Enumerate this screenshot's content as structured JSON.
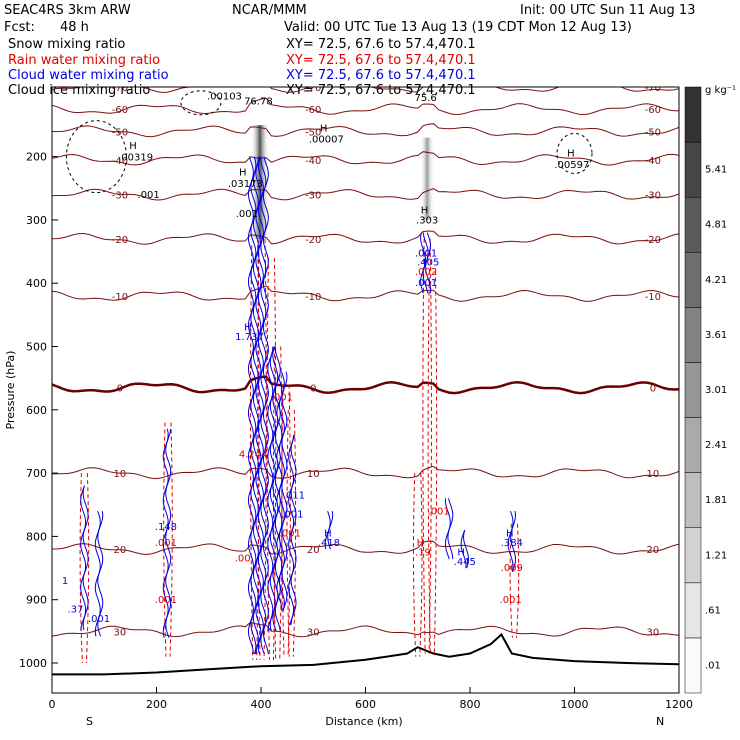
{
  "header": {
    "model": "SEAC4RS  3km ARW",
    "org": "NCAR/MMM",
    "init": "Init: 00 UTC Sun 11 Aug 13",
    "fcst_label": "Fcst:",
    "fcst_value": "48 h",
    "valid": "Valid: 00 UTC Tue 13 Aug 13 (19 CDT Mon 12 Aug 13)"
  },
  "fields": [
    {
      "name": "Snow mixing ratio",
      "xy": "XY=  72.5, 67.6  to  57.4,470.1",
      "color": "#000000"
    },
    {
      "name": "Rain water mixing ratio",
      "xy": "XY=  72.5, 67.6  to  57.4,470.1",
      "color": "#e00000"
    },
    {
      "name": "Cloud water mixing ratio",
      "xy": "XY=  72.5, 67.6  to  57.4,470.1",
      "color": "#0000e0"
    },
    {
      "name": "Cloud ice mixing ratio",
      "xy": "XY=  72.5, 67.6  to  57.4,470.1",
      "color": "#000000"
    }
  ],
  "chart_data": {
    "type": "contour cross-section",
    "xlabel": "Distance (km)",
    "ylabel": "Pressure (hPa)",
    "xlim": [
      0,
      1200
    ],
    "ylim": [
      1000,
      100
    ],
    "x_ticks": [
      0,
      200,
      400,
      600,
      800,
      1000,
      1200
    ],
    "y_ticks": [
      200,
      300,
      400,
      500,
      600,
      700,
      800,
      900,
      1000
    ],
    "x_end_labels": {
      "left": "S",
      "right": "N"
    },
    "colorbar": {
      "unit": "g kg⁻¹",
      "ticks": [
        ".01",
        ".61",
        "1.21",
        "1.81",
        "2.41",
        "3.01",
        "3.61",
        "4.21",
        "4.81",
        "5.41"
      ]
    },
    "temperature_contours": [
      {
        "label": "-70",
        "points": [
          [
            160,
            -81
          ],
          [
            300,
            -79
          ],
          [
            420,
            -78
          ],
          [
            600,
            -77
          ],
          [
            750,
            -75
          ],
          [
            900,
            -73
          ],
          [
            1050,
            -71
          ],
          [
            1200,
            -70
          ]
        ]
      },
      {
        "label": "-60",
        "points": [
          [
            0,
            -64
          ],
          [
            150,
            -66
          ],
          [
            300,
            -65
          ],
          [
            420,
            -64
          ],
          [
            600,
            -65
          ],
          [
            800,
            -64
          ],
          [
            1000,
            -62
          ],
          [
            1200,
            -61
          ]
        ]
      },
      {
        "label": "-50",
        "points": [
          [
            0,
            -54
          ],
          [
            200,
            -55
          ],
          [
            400,
            -54
          ],
          [
            600,
            -53
          ],
          [
            800,
            -53
          ],
          [
            1000,
            -52
          ],
          [
            1200,
            -50
          ]
        ]
      },
      {
        "label": "-40",
        "points": [
          [
            0,
            -42
          ],
          [
            200,
            -44
          ],
          [
            400,
            -43
          ],
          [
            600,
            -42
          ],
          [
            800,
            -41
          ],
          [
            1000,
            -40
          ],
          [
            1200,
            -39
          ]
        ]
      },
      {
        "label": "-30",
        "points": [
          [
            0,
            -31
          ],
          [
            200,
            -32
          ],
          [
            400,
            -30
          ],
          [
            600,
            -30
          ],
          [
            800,
            -29
          ],
          [
            1000,
            -29
          ],
          [
            1200,
            -28
          ]
        ]
      },
      {
        "label": "-20",
        "points": [
          [
            0,
            -19
          ],
          [
            200,
            -20
          ],
          [
            400,
            -21
          ],
          [
            600,
            -20
          ],
          [
            800,
            -19
          ],
          [
            1000,
            -18
          ],
          [
            1200,
            -17
          ]
        ]
      },
      {
        "label": "-10",
        "points": [
          [
            0,
            -7
          ],
          [
            200,
            -7
          ],
          [
            400,
            -8
          ],
          [
            600,
            -8
          ],
          [
            800,
            -6
          ],
          [
            1000,
            -5
          ],
          [
            1200,
            -4
          ]
        ]
      },
      {
        "label": "0",
        "points": [
          [
            0,
            0
          ],
          [
            200,
            0
          ],
          [
            400,
            0
          ],
          [
            600,
            0
          ],
          [
            800,
            0
          ],
          [
            1000,
            0
          ],
          [
            1200,
            0
          ]
        ]
      },
      {
        "label": "10",
        "points": [
          [
            0,
            13
          ],
          [
            200,
            12
          ],
          [
            400,
            11
          ],
          [
            600,
            11
          ],
          [
            800,
            11
          ],
          [
            1000,
            12
          ],
          [
            1200,
            13
          ]
        ]
      },
      {
        "label": "20",
        "points": [
          [
            0,
            20
          ],
          [
            200,
            19
          ],
          [
            400,
            19
          ],
          [
            600,
            19
          ],
          [
            800,
            20
          ],
          [
            1000,
            20
          ],
          [
            1200,
            21
          ]
        ]
      },
      {
        "label": "30",
        "points": [
          [
            200,
            29
          ],
          [
            400,
            29
          ],
          [
            600,
            30
          ],
          [
            800,
            30
          ],
          [
            1000,
            30
          ],
          [
            1200,
            31
          ]
        ]
      }
    ],
    "isotherm_pressures": {
      "-70": 90,
      "-60": 125,
      "-50": 160,
      "-40": 205,
      "-30": 260,
      "-20": 330,
      "-10": 420,
      "0": 565,
      "10": 700,
      "20": 820,
      "30": 950
    },
    "terrain": [
      [
        0,
        1018
      ],
      [
        100,
        1018
      ],
      [
        200,
        1015
      ],
      [
        300,
        1010
      ],
      [
        400,
        1005
      ],
      [
        500,
        1003
      ],
      [
        600,
        995
      ],
      [
        680,
        985
      ],
      [
        700,
        975
      ],
      [
        730,
        985
      ],
      [
        760,
        990
      ],
      [
        800,
        985
      ],
      [
        840,
        970
      ],
      [
        860,
        955
      ],
      [
        880,
        985
      ],
      [
        920,
        992
      ],
      [
        1000,
        997
      ],
      [
        1100,
        1000
      ],
      [
        1200,
        1002
      ]
    ],
    "snow_shading_columns": [
      {
        "x": 398,
        "p_top": 150,
        "p_bottom": 330,
        "max": 3.0
      },
      {
        "x": 718,
        "p_top": 170,
        "p_bottom": 300,
        "max": 1.2
      }
    ],
    "labels": [
      {
        "text": ".00103",
        "x": 330,
        "p": 110,
        "color": "black"
      },
      {
        "text": "76.78",
        "x": 395,
        "p": 118,
        "color": "black"
      },
      {
        "text": "75.6",
        "x": 715,
        "p": 112,
        "color": "black"
      },
      {
        "text": "H",
        "x": 520,
        "p": 160,
        "color": "black"
      },
      {
        "text": ".00007",
        "x": 525,
        "p": 178,
        "color": "black"
      },
      {
        "text": "H",
        "x": 155,
        "p": 188,
        "color": "black"
      },
      {
        "text": ".00319",
        "x": 160,
        "p": 206,
        "color": "black"
      },
      {
        "text": ".001",
        "x": 185,
        "p": 265,
        "color": "black"
      },
      {
        "text": "H",
        "x": 365,
        "p": 230,
        "color": "black"
      },
      {
        "text": ".03173",
        "x": 370,
        "p": 248,
        "color": "black"
      },
      {
        "text": ".001",
        "x": 373,
        "p": 295,
        "color": "black"
      },
      {
        "text": "H",
        "x": 993,
        "p": 200,
        "color": "black"
      },
      {
        "text": ".00597",
        "x": 995,
        "p": 218,
        "color": "black"
      },
      {
        "text": "H",
        "x": 713,
        "p": 290,
        "color": "black"
      },
      {
        "text": ".303",
        "x": 718,
        "p": 306,
        "color": "black"
      },
      {
        "text": ".001",
        "x": 716,
        "p": 358,
        "color": "blue"
      },
      {
        "text": ".405",
        "x": 720,
        "p": 372,
        "color": "blue"
      },
      {
        "text": ".002",
        "x": 716,
        "p": 387,
        "color": "red"
      },
      {
        "text": ".001",
        "x": 716,
        "p": 404,
        "color": "blue"
      },
      {
        "text": "H",
        "x": 375,
        "p": 475,
        "color": "blue"
      },
      {
        "text": "1.737",
        "x": 378,
        "p": 490,
        "color": "blue"
      },
      {
        "text": ".001",
        "x": 440,
        "p": 585,
        "color": "red"
      },
      {
        "text": "4.244",
        "x": 385,
        "p": 675,
        "color": "red"
      },
      {
        "text": ".011",
        "x": 463,
        "p": 740,
        "color": "blue"
      },
      {
        "text": ".001",
        "x": 460,
        "p": 770,
        "color": "blue"
      },
      {
        "text": ".001",
        "x": 455,
        "p": 800,
        "color": "red"
      },
      {
        "text": ".148",
        "x": 218,
        "p": 790,
        "color": "blue"
      },
      {
        "text": ".001",
        "x": 218,
        "p": 815,
        "color": "red"
      },
      {
        "text": "H",
        "x": 528,
        "p": 800,
        "color": "blue"
      },
      {
        "text": ".418",
        "x": 530,
        "p": 815,
        "color": "blue"
      },
      {
        "text": ".00",
        "x": 365,
        "p": 840,
        "color": "red"
      },
      {
        "text": ".001",
        "x": 218,
        "p": 905,
        "color": "red"
      },
      {
        "text": ".001",
        "x": 90,
        "p": 935,
        "color": "blue"
      },
      {
        "text": ".37",
        "x": 45,
        "p": 920,
        "color": "blue"
      },
      {
        "text": "1",
        "x": 25,
        "p": 875,
        "color": "blue"
      },
      {
        "text": ".001",
        "x": 740,
        "p": 765,
        "color": "red"
      },
      {
        "text": "H",
        "x": 705,
        "p": 815,
        "color": "red"
      },
      {
        "text": ".19",
        "x": 710,
        "p": 830,
        "color": "red"
      },
      {
        "text": "H",
        "x": 783,
        "p": 830,
        "color": "blue"
      },
      {
        "text": ".445",
        "x": 790,
        "p": 845,
        "color": "blue"
      },
      {
        "text": "H",
        "x": 876,
        "p": 800,
        "color": "blue"
      },
      {
        "text": ".384",
        "x": 880,
        "p": 815,
        "color": "blue"
      },
      {
        "text": ".009",
        "x": 880,
        "p": 855,
        "color": "red"
      },
      {
        "text": ".001",
        "x": 878,
        "p": 905,
        "color": "red"
      }
    ]
  },
  "colors": {
    "isotherm": "#7a1010",
    "isotherm_zero": "#6a0000",
    "rain": "#e00000",
    "cloud": "#0000e0",
    "terrain": "#000000"
  }
}
